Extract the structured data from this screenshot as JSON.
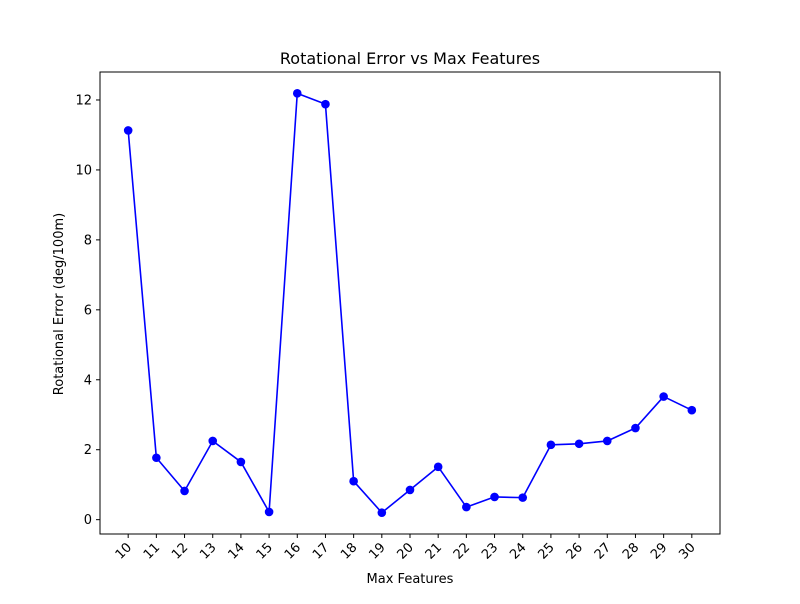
{
  "chart_data": {
    "type": "line",
    "title": "Rotational Error vs Max Features",
    "xlabel": "Max Features",
    "ylabel": "Rotational Error (deg/100m)",
    "categories": [
      "10",
      "11",
      "12",
      "13",
      "14",
      "15",
      "16",
      "17",
      "18",
      "19",
      "20",
      "21",
      "22",
      "23",
      "24",
      "25",
      "26",
      "27",
      "28",
      "29",
      "30"
    ],
    "series": [
      {
        "values": [
          11.13,
          1.77,
          0.82,
          2.25,
          1.65,
          0.22,
          12.19,
          11.88,
          1.1,
          0.2,
          0.85,
          1.51,
          0.36,
          0.65,
          0.63,
          2.14,
          2.17,
          2.25,
          2.62,
          3.52,
          3.13
        ],
        "color": "#0000ff",
        "marker": "circle"
      }
    ],
    "yticks": [
      0,
      2,
      4,
      6,
      8,
      10,
      12
    ],
    "ylim": [
      -0.41,
      12.8
    ],
    "grid": false,
    "legend": "none",
    "xtick_rotation": 45
  }
}
